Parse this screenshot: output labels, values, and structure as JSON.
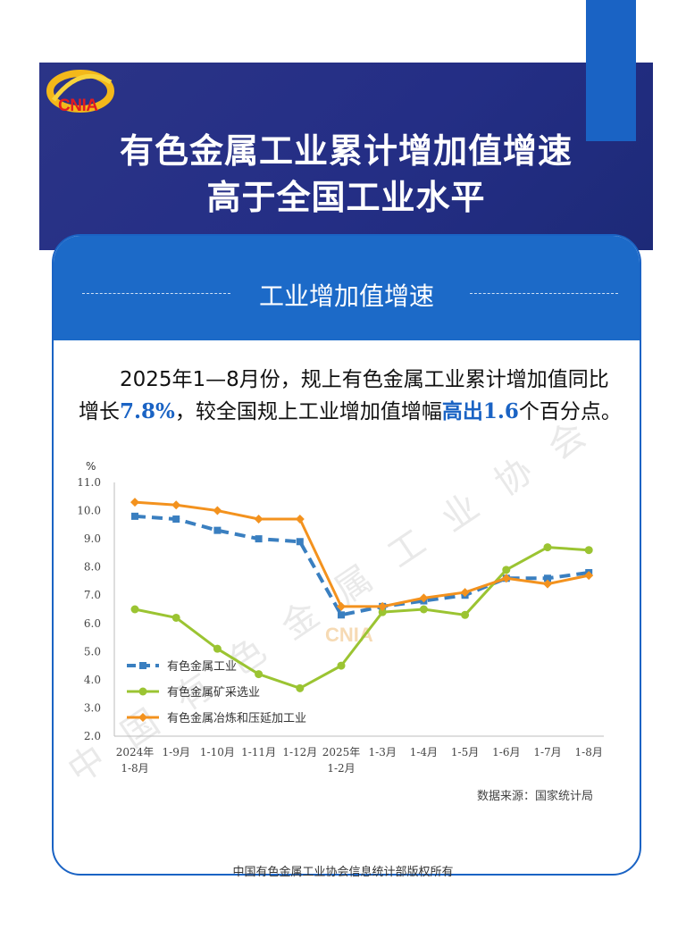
{
  "header": {
    "logo_text": "CNIA",
    "title_line1": "有色金属工业累计增加值增速",
    "title_line2": "高于全国工业水平"
  },
  "section": {
    "title": "工业增加值增速"
  },
  "summary": {
    "part1": "2025年1—8月份，规上有色金属工业累计增加值同比增长",
    "value1": "7.8%",
    "part2": "，较全国规上工业增加值增幅",
    "highlight": "高出",
    "value2": "1.6",
    "part3": "个百分点。"
  },
  "chart_data": {
    "type": "line",
    "ylabel": "%",
    "ylim": [
      2.0,
      11.0
    ],
    "yticks": [
      "2.0",
      "3.0",
      "4.0",
      "5.0",
      "6.0",
      "7.0",
      "8.0",
      "9.0",
      "10.0",
      "11.0"
    ],
    "categories": [
      "2024年 1-8月",
      "1-9月",
      "1-10月",
      "1-11月",
      "1-12月",
      "2025年 1-2月",
      "1-3月",
      "1-4月",
      "1-5月",
      "1-6月",
      "1-7月",
      "1-8月"
    ],
    "category_lines": [
      [
        "2024年",
        "1-8月"
      ],
      [
        "1-9月"
      ],
      [
        "1-10月"
      ],
      [
        "1-11月"
      ],
      [
        "1-12月"
      ],
      [
        "2025年",
        "1-2月"
      ],
      [
        "1-3月"
      ],
      [
        "1-4月"
      ],
      [
        "1-5月"
      ],
      [
        "1-6月"
      ],
      [
        "1-7月"
      ],
      [
        "1-8月"
      ]
    ],
    "legend_position": "lower-left",
    "series": [
      {
        "name": "有色金属工业",
        "color": "#3a7fc0",
        "style": "dashed",
        "marker": "square",
        "values": [
          9.8,
          9.7,
          9.3,
          9.0,
          8.9,
          6.3,
          6.6,
          6.8,
          7.0,
          7.6,
          7.6,
          7.8
        ]
      },
      {
        "name": "有色金属矿采选业",
        "color": "#9bc432",
        "style": "solid",
        "marker": "circle",
        "values": [
          6.5,
          6.2,
          5.1,
          4.2,
          3.7,
          4.5,
          6.4,
          6.5,
          6.3,
          7.9,
          8.7,
          8.6
        ]
      },
      {
        "name": "有色金属冶炼和压延加工业",
        "color": "#f3921e",
        "style": "solid",
        "marker": "diamond",
        "values": [
          10.3,
          10.2,
          10.0,
          9.7,
          9.7,
          6.6,
          6.6,
          6.9,
          7.1,
          7.6,
          7.4,
          7.7
        ]
      }
    ]
  },
  "source": "数据来源：国家统计局",
  "footer": "中国有色金属工业协会信息统计部版权所有",
  "watermark": {
    "text": "中国有色金属工业协会",
    "logo_text": "CNIA"
  }
}
